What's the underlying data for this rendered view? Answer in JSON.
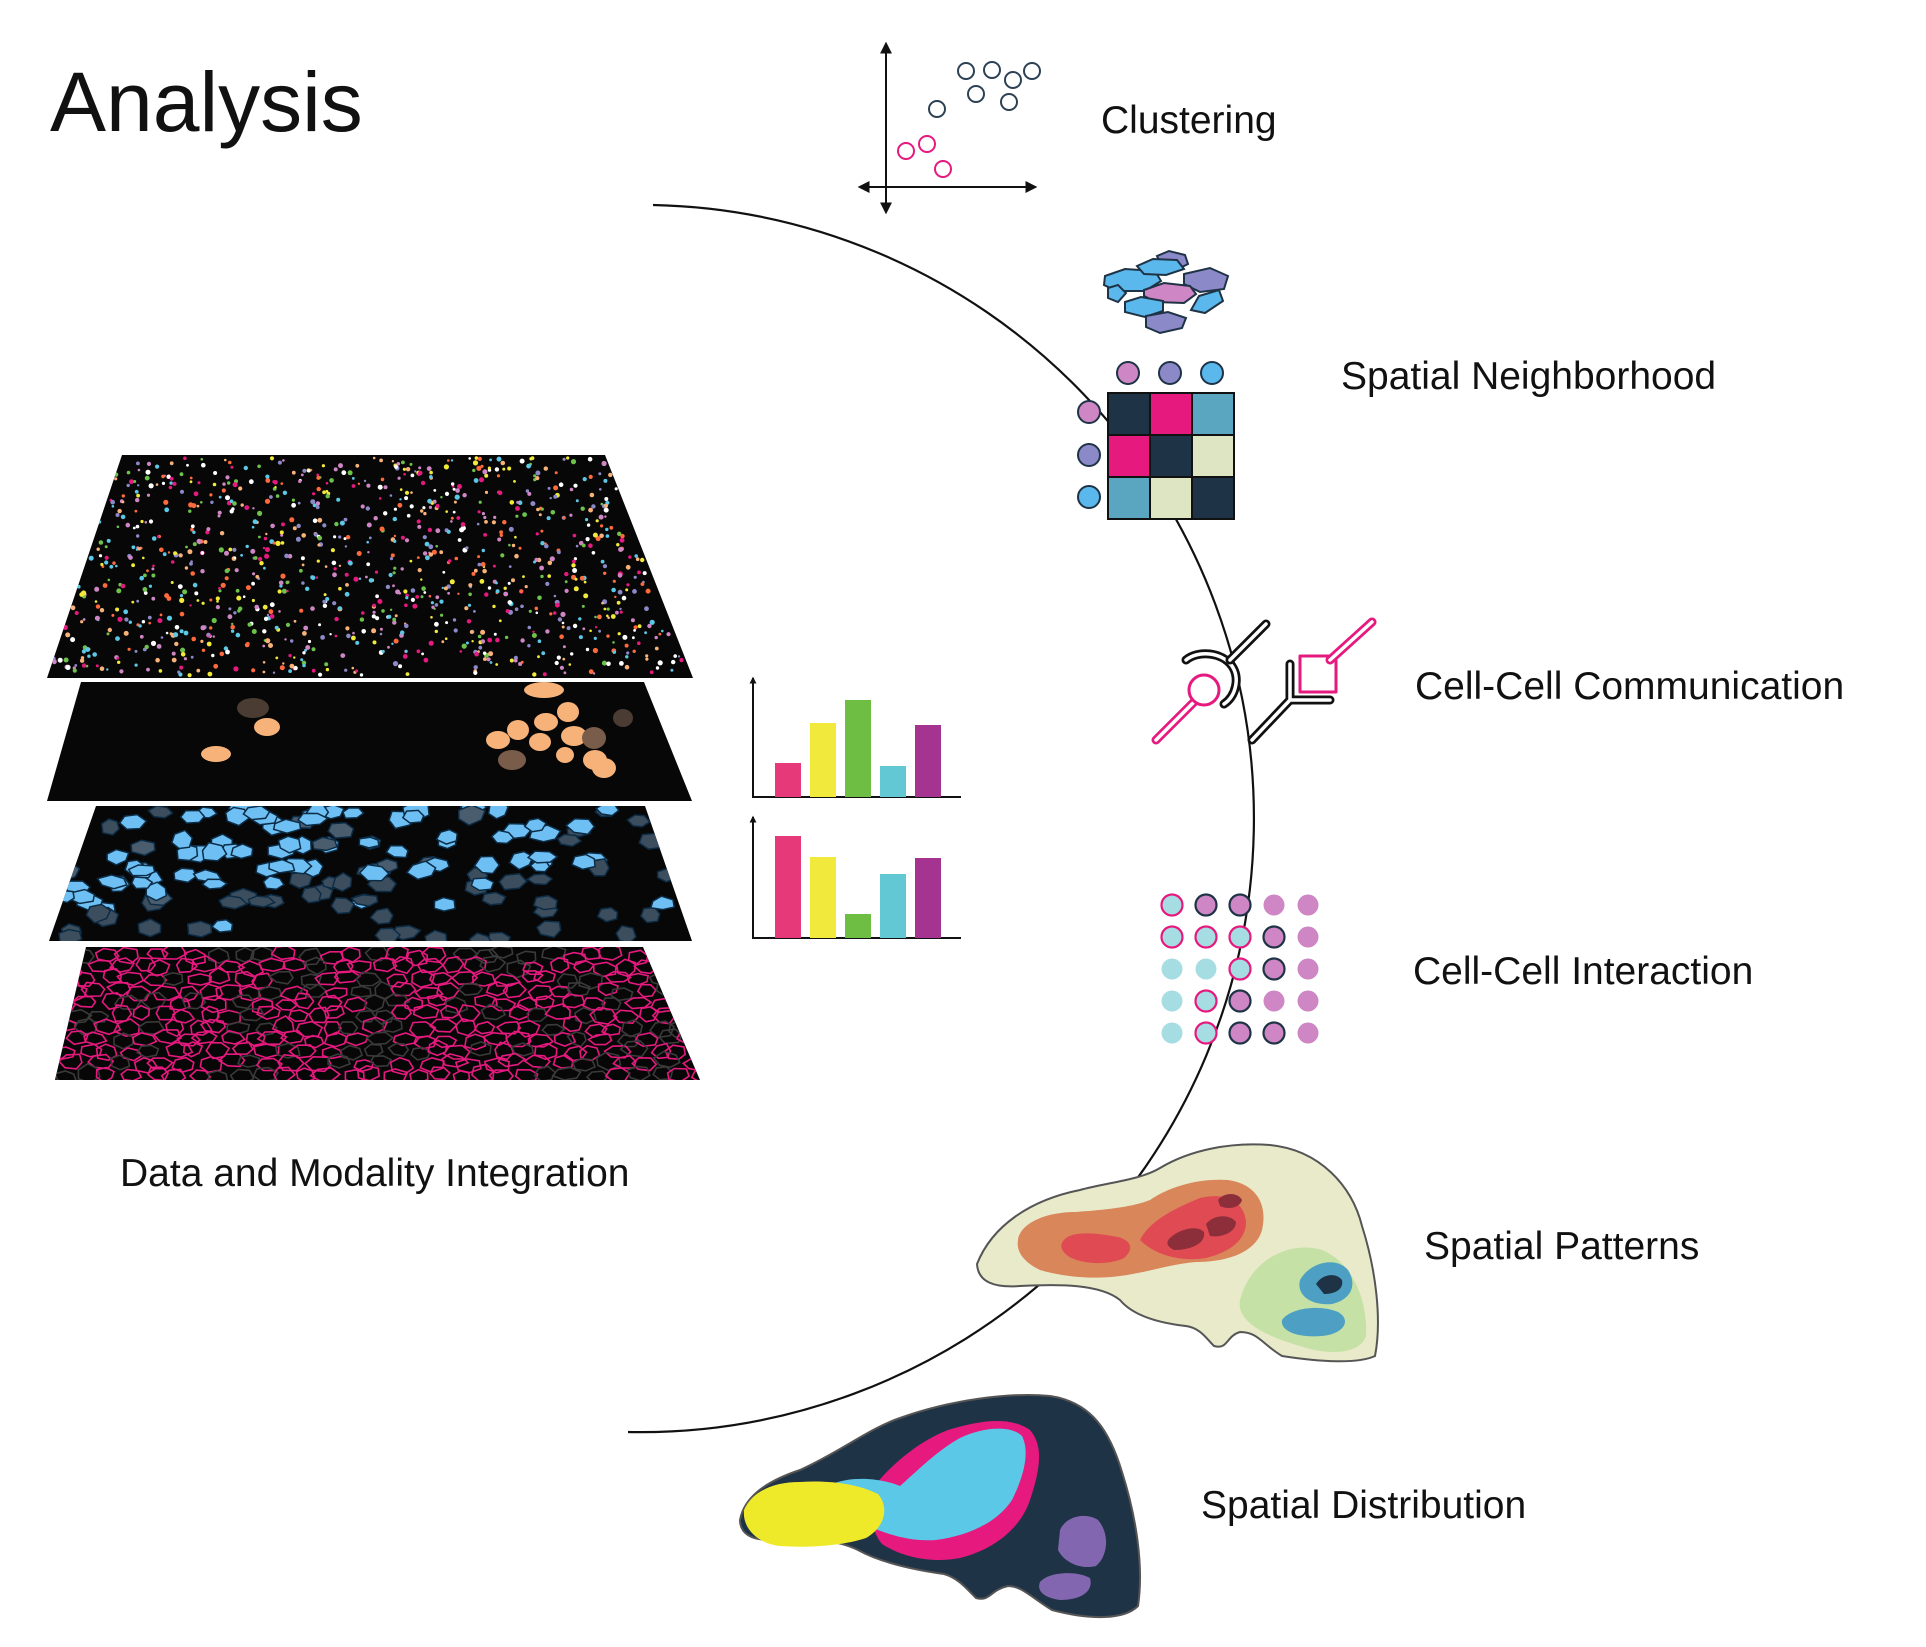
{
  "title": "Analysis",
  "integration_label": "Data and Modality Integration",
  "analyses": [
    {
      "label": "Clustering",
      "icon": "scatter-plot-icon"
    },
    {
      "label": "Spatial Neighborhood",
      "icon": "neighborhood-matrix-icon"
    },
    {
      "label": "Cell-Cell Communication",
      "icon": "ligand-receptor-icon"
    },
    {
      "label": "Cell-Cell Interaction",
      "icon": "dot-grid-icon"
    },
    {
      "label": "Spatial Patterns",
      "icon": "tissue-heatmap-icon"
    },
    {
      "label": "Spatial Distribution",
      "icon": "tissue-regions-icon"
    }
  ],
  "colors": {
    "pink": "#e6197f",
    "light_pink": "#cf86c4",
    "purple": "#8c89c8",
    "blue": "#5bb8ec",
    "cyan": "#9fdbe3",
    "navy": "#1f3346",
    "teal": "#5aa5c0",
    "pale_green": "#dde5c2",
    "yellow": "#eeea2a",
    "violet": "#8366b0",
    "layer_bg": "#070707"
  }
}
